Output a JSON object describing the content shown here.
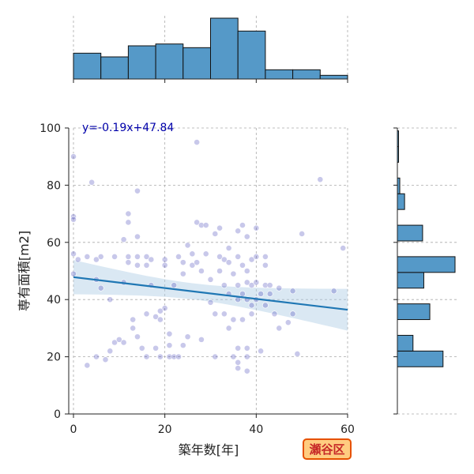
{
  "chart_data": {
    "type": "scatter",
    "xlabel": "築年数[年]",
    "ylabel": "専有面積[m2]",
    "xlim": [
      0,
      60
    ],
    "ylim": [
      0,
      100
    ],
    "x_ticks": [
      0,
      20,
      40,
      60
    ],
    "y_ticks": [
      0,
      20,
      40,
      60,
      80,
      100
    ],
    "grid": true,
    "regression": {
      "label": "y=-0.19x+47.84",
      "slope": -0.19,
      "intercept": 47.84,
      "color": "#1f77b4",
      "ci_color": "#aecde5"
    },
    "equation_color": "#0000aa",
    "point_color": "#3b3bb5",
    "hist_color": "#5599c8",
    "badge": {
      "label": "瀬谷区",
      "fill": "#ffcc80",
      "stroke": "#e65100",
      "text_color": "#c62828"
    },
    "points": [
      {
        "x": 0,
        "y": 90
      },
      {
        "x": 0,
        "y": 69
      },
      {
        "x": 0,
        "y": 68
      },
      {
        "x": 0,
        "y": 56
      },
      {
        "x": 0,
        "y": 49
      },
      {
        "x": 1,
        "y": 54
      },
      {
        "x": 3,
        "y": 55
      },
      {
        "x": 4,
        "y": 81
      },
      {
        "x": 5,
        "y": 54
      },
      {
        "x": 5,
        "y": 47
      },
      {
        "x": 6,
        "y": 55
      },
      {
        "x": 6,
        "y": 44
      },
      {
        "x": 3,
        "y": 17
      },
      {
        "x": 5,
        "y": 20
      },
      {
        "x": 7,
        "y": 19
      },
      {
        "x": 8,
        "y": 40
      },
      {
        "x": 8,
        "y": 22
      },
      {
        "x": 9,
        "y": 55
      },
      {
        "x": 9,
        "y": 25
      },
      {
        "x": 10,
        "y": 26
      },
      {
        "x": 11,
        "y": 25
      },
      {
        "x": 11,
        "y": 46
      },
      {
        "x": 11,
        "y": 61
      },
      {
        "x": 12,
        "y": 70
      },
      {
        "x": 12,
        "y": 67
      },
      {
        "x": 12,
        "y": 55
      },
      {
        "x": 12,
        "y": 53
      },
      {
        "x": 13,
        "y": 33
      },
      {
        "x": 13,
        "y": 30
      },
      {
        "x": 14,
        "y": 55
      },
      {
        "x": 14,
        "y": 52
      },
      {
        "x": 14,
        "y": 62
      },
      {
        "x": 14,
        "y": 78
      },
      {
        "x": 14,
        "y": 27
      },
      {
        "x": 15,
        "y": 23
      },
      {
        "x": 16,
        "y": 55
      },
      {
        "x": 16,
        "y": 52
      },
      {
        "x": 16,
        "y": 20
      },
      {
        "x": 16,
        "y": 35
      },
      {
        "x": 17,
        "y": 54
      },
      {
        "x": 17,
        "y": 45
      },
      {
        "x": 18,
        "y": 23
      },
      {
        "x": 18,
        "y": 34
      },
      {
        "x": 19,
        "y": 20
      },
      {
        "x": 19,
        "y": 36
      },
      {
        "x": 19,
        "y": 33
      },
      {
        "x": 20,
        "y": 54
      },
      {
        "x": 20,
        "y": 52
      },
      {
        "x": 20,
        "y": 37
      },
      {
        "x": 21,
        "y": 28
      },
      {
        "x": 21,
        "y": 24
      },
      {
        "x": 21,
        "y": 20
      },
      {
        "x": 22,
        "y": 20
      },
      {
        "x": 22,
        "y": 45
      },
      {
        "x": 23,
        "y": 20
      },
      {
        "x": 23,
        "y": 55
      },
      {
        "x": 24,
        "y": 53
      },
      {
        "x": 24,
        "y": 24
      },
      {
        "x": 24,
        "y": 49
      },
      {
        "x": 25,
        "y": 59
      },
      {
        "x": 25,
        "y": 27
      },
      {
        "x": 26,
        "y": 56
      },
      {
        "x": 26,
        "y": 52
      },
      {
        "x": 27,
        "y": 95
      },
      {
        "x": 27,
        "y": 67
      },
      {
        "x": 27,
        "y": 53
      },
      {
        "x": 28,
        "y": 66
      },
      {
        "x": 28,
        "y": 26
      },
      {
        "x": 28,
        "y": 50
      },
      {
        "x": 29,
        "y": 66
      },
      {
        "x": 29,
        "y": 56
      },
      {
        "x": 30,
        "y": 47
      },
      {
        "x": 30,
        "y": 39
      },
      {
        "x": 31,
        "y": 35
      },
      {
        "x": 31,
        "y": 20
      },
      {
        "x": 31,
        "y": 63
      },
      {
        "x": 32,
        "y": 65
      },
      {
        "x": 32,
        "y": 55
      },
      {
        "x": 32,
        "y": 50
      },
      {
        "x": 33,
        "y": 54
      },
      {
        "x": 33,
        "y": 45
      },
      {
        "x": 33,
        "y": 35
      },
      {
        "x": 34,
        "y": 58
      },
      {
        "x": 34,
        "y": 53
      },
      {
        "x": 34,
        "y": 42
      },
      {
        "x": 34,
        "y": 30
      },
      {
        "x": 35,
        "y": 49
      },
      {
        "x": 35,
        "y": 33
      },
      {
        "x": 35,
        "y": 20
      },
      {
        "x": 36,
        "y": 64
      },
      {
        "x": 36,
        "y": 55
      },
      {
        "x": 36,
        "y": 45
      },
      {
        "x": 36,
        "y": 40
      },
      {
        "x": 36,
        "y": 23
      },
      {
        "x": 36,
        "y": 18
      },
      {
        "x": 36,
        "y": 16
      },
      {
        "x": 37,
        "y": 66
      },
      {
        "x": 37,
        "y": 52
      },
      {
        "x": 37,
        "y": 42
      },
      {
        "x": 37,
        "y": 33
      },
      {
        "x": 38,
        "y": 62
      },
      {
        "x": 38,
        "y": 50
      },
      {
        "x": 38,
        "y": 46
      },
      {
        "x": 38,
        "y": 40
      },
      {
        "x": 38,
        "y": 23
      },
      {
        "x": 38,
        "y": 20
      },
      {
        "x": 38,
        "y": 15
      },
      {
        "x": 39,
        "y": 54
      },
      {
        "x": 39,
        "y": 45
      },
      {
        "x": 39,
        "y": 38
      },
      {
        "x": 39,
        "y": 35
      },
      {
        "x": 40,
        "y": 65
      },
      {
        "x": 40,
        "y": 55
      },
      {
        "x": 40,
        "y": 46
      },
      {
        "x": 40,
        "y": 40
      },
      {
        "x": 41,
        "y": 42
      },
      {
        "x": 41,
        "y": 22
      },
      {
        "x": 42,
        "y": 55
      },
      {
        "x": 42,
        "y": 52
      },
      {
        "x": 42,
        "y": 45
      },
      {
        "x": 42,
        "y": 38
      },
      {
        "x": 43,
        "y": 45
      },
      {
        "x": 43,
        "y": 42
      },
      {
        "x": 44,
        "y": 35
      },
      {
        "x": 45,
        "y": 44
      },
      {
        "x": 45,
        "y": 30
      },
      {
        "x": 47,
        "y": 32
      },
      {
        "x": 48,
        "y": 35
      },
      {
        "x": 48,
        "y": 43
      },
      {
        "x": 49,
        "y": 21
      },
      {
        "x": 50,
        "y": 63
      },
      {
        "x": 54,
        "y": 82
      },
      {
        "x": 57,
        "y": 43
      },
      {
        "x": 59,
        "y": 58
      }
    ],
    "marginal_x": {
      "bins": [
        0,
        6,
        12,
        18,
        24,
        30,
        36,
        42,
        48,
        54,
        60
      ],
      "counts": [
        14,
        12,
        18,
        19,
        17,
        33,
        26,
        5,
        5,
        2
      ]
    },
    "marginal_y": {
      "bins": [
        0,
        5.5,
        11,
        16.5,
        22,
        27.5,
        33,
        38.5,
        44,
        49.5,
        55,
        60.5,
        66,
        71.5,
        77,
        82.5,
        88,
        93.5,
        99
      ],
      "counts": [
        0,
        0,
        0,
        38,
        13,
        0,
        27,
        0,
        22,
        48,
        0,
        21,
        0,
        6,
        2,
        0,
        1,
        1
      ]
    }
  }
}
